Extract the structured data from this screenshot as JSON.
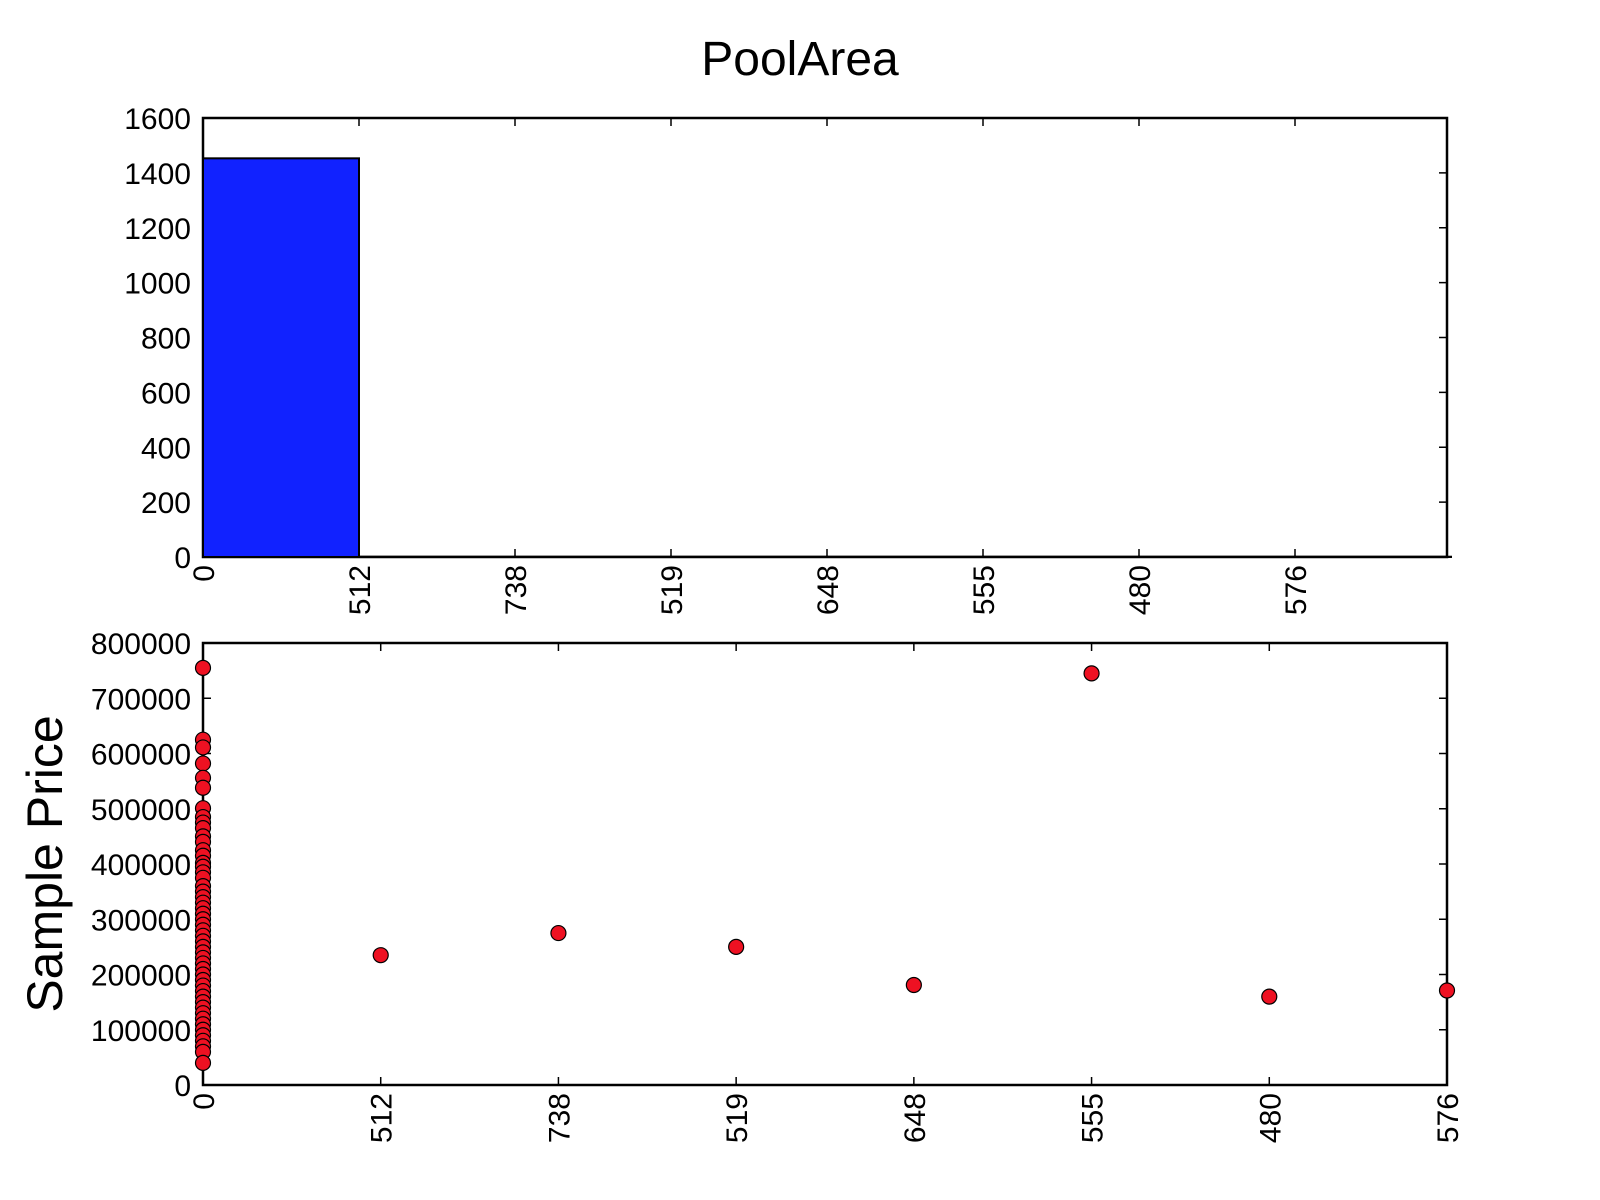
{
  "figure": {
    "title": "PoolArea"
  },
  "colors": {
    "bar": "#1122ff",
    "point": "#ee1122",
    "edge": "#000000"
  },
  "chart_data": [
    {
      "type": "bar",
      "title": "PoolArea",
      "xlabel": "",
      "ylabel": "",
      "categories": [
        "0",
        "512",
        "738",
        "519",
        "648",
        "555",
        "480",
        "576"
      ],
      "values": [
        1453,
        1,
        1,
        1,
        1,
        1,
        1,
        1
      ],
      "ylim": [
        0,
        1600
      ],
      "yticks": [
        "0",
        "200",
        "400",
        "600",
        "800",
        "1000",
        "1200",
        "1400",
        "1600"
      ],
      "grid": false,
      "legend": "none"
    },
    {
      "type": "scatter",
      "xlabel": "",
      "ylabel": "Sample Price",
      "categories": [
        "0",
        "512",
        "738",
        "519",
        "648",
        "555",
        "480",
        "576"
      ],
      "ylim": [
        0,
        800000
      ],
      "yticks": [
        "0",
        "100000",
        "200000",
        "300000",
        "400000",
        "500000",
        "600000",
        "700000",
        "800000"
      ],
      "grid": false,
      "legend": "none",
      "series": [
        {
          "x": [
            "0",
            "0",
            "0",
            "0",
            "0",
            "0",
            "0",
            "0",
            "0",
            "0",
            "0",
            "0",
            "0",
            "0",
            "0",
            "0",
            "0",
            "0",
            "0",
            "0",
            "0",
            "0",
            "0",
            "0",
            "0",
            "0",
            "0",
            "0",
            "0",
            "0",
            "0",
            "0",
            "0",
            "0",
            "0",
            "0",
            "0",
            "0",
            "0",
            "0",
            "0",
            "0",
            "0",
            "0",
            "0",
            "0",
            "0",
            "0",
            "0",
            "0",
            "512",
            "738",
            "519",
            "648",
            "555",
            "480",
            "576"
          ],
          "y": [
            755000,
            625000,
            611000,
            582000,
            556000,
            538000,
            501000,
            485000,
            475000,
            465000,
            450000,
            440000,
            425000,
            415000,
            402000,
            395000,
            385000,
            375000,
            360000,
            350000,
            340000,
            330000,
            320000,
            310000,
            300000,
            290000,
            280000,
            270000,
            260000,
            250000,
            240000,
            230000,
            220000,
            210000,
            200000,
            190000,
            180000,
            170000,
            160000,
            150000,
            140000,
            130000,
            120000,
            110000,
            100000,
            90000,
            80000,
            70000,
            60000,
            40000,
            235000,
            274970,
            250000,
            181000,
            745000,
            160000,
            171000
          ]
        }
      ]
    }
  ]
}
